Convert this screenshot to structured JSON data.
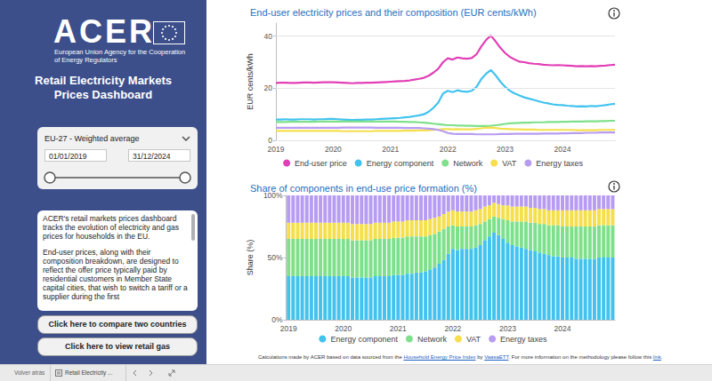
{
  "sidebar": {
    "logo": "ACER",
    "agency": [
      "European Union Agency for the Cooperation",
      "of Energy Regulators"
    ],
    "title": [
      "Retail Electricity Markets",
      "Prices Dashboard"
    ],
    "filter": {
      "selection": "EU-27 - Weighted average",
      "date_from": "01/01/2019",
      "date_to": "31/12/2024"
    },
    "description": [
      "ACER's retail markets prices dashboard tracks the evolution of electricity and gas prices for households in the EU.",
      "End-user prices, along with their composition breakdown, are designed to reflect the offer price typically paid by residential customers in Member State capital cities, that wish to switch a tariff or a supplier during the first"
    ],
    "buttons": [
      "Click here to compare two countries",
      "Click here to view retail gas"
    ]
  },
  "footer": [
    {
      "text": "Calculations made by ACER based on data sourced from the "
    },
    {
      "text": "Household Energy Price Index",
      "link": true
    },
    {
      "text": " by "
    },
    {
      "text": "VaasaETT",
      "link": true
    },
    {
      "text": ". For more information on the methodology please follow this "
    },
    {
      "text": "link",
      "link": true
    },
    {
      "text": "."
    }
  ],
  "taskbar": {
    "back": "Volver atrás",
    "tab": "Retail Electricity ..."
  },
  "chart_data": [
    {
      "type": "line",
      "title": "End-user electricity prices and their composition (EUR cents/kWh)",
      "y_label": "EUR cents/kWh",
      "categories": [
        "2019",
        null,
        null,
        null,
        null,
        null,
        null,
        null,
        null,
        null,
        null,
        null,
        "2020",
        null,
        null,
        null,
        null,
        null,
        null,
        null,
        null,
        null,
        null,
        null,
        "2021",
        null,
        null,
        null,
        null,
        null,
        null,
        null,
        null,
        null,
        null,
        null,
        "2022",
        null,
        null,
        null,
        null,
        null,
        null,
        null,
        null,
        null,
        null,
        null,
        "2023",
        null,
        null,
        null,
        null,
        null,
        null,
        null,
        null,
        null,
        null,
        null,
        "2024",
        null,
        null,
        null,
        null,
        null,
        null,
        null,
        null,
        null,
        null,
        null
      ],
      "series": [
        {
          "name": "End-user price",
          "color": "#e23fb6",
          "values": [
            22.0,
            22.1,
            22.1,
            22.0,
            22.0,
            22.1,
            22.2,
            22.2,
            22.1,
            22.2,
            22.3,
            22.3,
            22.3,
            22.2,
            22.1,
            22.0,
            21.9,
            22.0,
            22.0,
            22.1,
            22.1,
            22.2,
            22.3,
            22.4,
            22.5,
            22.6,
            22.7,
            22.8,
            23.0,
            23.3,
            23.6,
            24.0,
            24.8,
            26.0,
            27.5,
            30.0,
            31.5,
            31.0,
            31.8,
            31.5,
            31.3,
            31.6,
            33.0,
            36.0,
            38.5,
            40.2,
            38.0,
            35.5,
            33.5,
            32.0,
            31.0,
            30.2,
            30.0,
            29.6,
            29.4,
            29.3,
            29.0,
            28.9,
            28.8,
            28.9,
            28.8,
            28.7,
            28.6,
            28.4,
            28.5,
            28.4,
            28.5,
            28.4,
            28.6,
            28.7,
            28.9,
            29.0
          ]
        },
        {
          "name": "Energy component",
          "color": "#41c3ee",
          "values": [
            8.0,
            8.0,
            8.1,
            8.0,
            8.0,
            8.1,
            8.1,
            8.1,
            8.0,
            8.1,
            8.1,
            8.2,
            8.2,
            8.1,
            8.0,
            7.9,
            7.8,
            7.9,
            7.9,
            8.0,
            8.0,
            8.1,
            8.2,
            8.3,
            8.4,
            8.5,
            8.6,
            8.8,
            9.0,
            9.3,
            9.6,
            10.0,
            11.0,
            12.5,
            14.5,
            18.0,
            19.0,
            18.5,
            19.2,
            18.8,
            18.6,
            19.0,
            20.5,
            23.5,
            25.5,
            27.0,
            25.0,
            22.5,
            20.5,
            19.0,
            18.0,
            17.2,
            16.5,
            16.0,
            15.5,
            15.0,
            14.5,
            14.2,
            13.8,
            13.6,
            13.5,
            13.3,
            13.2,
            13.0,
            13.1,
            13.0,
            13.2,
            13.1,
            13.3,
            13.5,
            13.8,
            14.0
          ]
        },
        {
          "name": "Network",
          "color": "#7fe08c",
          "values": [
            7.0,
            7.0,
            7.0,
            7.1,
            7.1,
            7.1,
            7.1,
            7.1,
            7.1,
            7.2,
            7.2,
            7.2,
            7.2,
            7.2,
            7.2,
            7.2,
            7.2,
            7.2,
            7.2,
            7.2,
            7.2,
            7.2,
            7.2,
            7.2,
            7.2,
            7.2,
            7.1,
            7.1,
            7.0,
            7.0,
            6.9,
            6.8,
            6.6,
            6.4,
            6.2,
            6.0,
            5.8,
            5.8,
            5.7,
            5.7,
            5.6,
            5.6,
            5.5,
            5.5,
            5.5,
            5.6,
            5.8,
            6.0,
            6.3,
            6.5,
            6.6,
            6.7,
            6.8,
            6.8,
            6.9,
            6.9,
            6.9,
            7.0,
            7.0,
            7.0,
            7.1,
            7.1,
            7.2,
            7.2,
            7.2,
            7.3,
            7.3,
            7.3,
            7.4,
            7.4,
            7.5,
            7.5
          ]
        },
        {
          "name": "VAT",
          "color": "#f5df4d",
          "values": [
            3.6,
            3.6,
            3.6,
            3.6,
            3.6,
            3.6,
            3.6,
            3.6,
            3.6,
            3.6,
            3.6,
            3.6,
            3.6,
            3.6,
            3.5,
            3.5,
            3.5,
            3.5,
            3.5,
            3.5,
            3.5,
            3.6,
            3.6,
            3.6,
            3.6,
            3.6,
            3.6,
            3.7,
            3.7,
            3.7,
            3.8,
            3.8,
            3.9,
            4.0,
            4.1,
            4.3,
            4.3,
            4.2,
            4.3,
            4.2,
            4.2,
            4.2,
            4.4,
            4.6,
            4.8,
            4.9,
            4.7,
            4.5,
            4.4,
            4.3,
            4.2,
            4.2,
            4.1,
            4.1,
            4.1,
            4.0,
            4.0,
            4.0,
            4.0,
            4.0,
            4.0,
            4.0,
            4.0,
            3.9,
            3.9,
            3.9,
            3.9,
            3.9,
            4.0,
            4.0,
            4.0,
            4.0
          ]
        },
        {
          "name": "Energy taxes",
          "color": "#b79cf2",
          "values": [
            4.8,
            4.8,
            4.8,
            4.8,
            4.8,
            4.8,
            4.8,
            4.8,
            4.8,
            4.8,
            4.8,
            4.8,
            4.8,
            4.8,
            4.9,
            4.9,
            4.9,
            4.9,
            4.9,
            4.9,
            4.9,
            4.8,
            4.8,
            4.8,
            4.8,
            4.8,
            4.8,
            4.7,
            4.7,
            4.7,
            4.7,
            4.6,
            4.5,
            4.3,
            4.0,
            3.5,
            2.8,
            2.5,
            2.4,
            2.4,
            2.4,
            2.4,
            2.3,
            2.3,
            2.3,
            2.3,
            2.3,
            2.4,
            2.4,
            2.4,
            2.5,
            2.5,
            2.5,
            2.5,
            2.5,
            2.5,
            2.6,
            2.6,
            2.6,
            2.6,
            2.7,
            2.7,
            2.8,
            2.8,
            2.8,
            2.9,
            2.9,
            2.9,
            3.0,
            3.0,
            3.0,
            3.0
          ]
        }
      ],
      "ylim": [
        0,
        45
      ],
      "yticks": [
        0,
        20,
        40
      ],
      "grid": true,
      "legend": "bottom"
    },
    {
      "type": "bar",
      "stacked": true,
      "title": "Share of components in end-use price formation (%)",
      "y_label": "Share (%)",
      "categories": [
        "2019",
        null,
        null,
        null,
        null,
        null,
        null,
        null,
        null,
        null,
        null,
        null,
        "2020",
        null,
        null,
        null,
        null,
        null,
        null,
        null,
        null,
        null,
        null,
        null,
        "2021",
        null,
        null,
        null,
        null,
        null,
        null,
        null,
        null,
        null,
        null,
        null,
        "2022",
        null,
        null,
        null,
        null,
        null,
        null,
        null,
        null,
        null,
        null,
        null,
        "2023",
        null,
        null,
        null,
        null,
        null,
        null,
        null,
        null,
        null,
        null,
        null,
        "2024",
        null,
        null,
        null,
        null,
        null,
        null,
        null,
        null,
        null,
        null,
        null
      ],
      "series": [
        {
          "name": "Energy component",
          "color": "#41c3ee",
          "values": [
            35,
            35,
            35,
            35,
            35,
            35,
            35,
            35,
            35,
            35,
            35,
            35,
            35,
            35,
            34,
            34,
            34,
            34,
            34,
            35,
            35,
            35,
            35,
            36,
            36,
            36,
            37,
            37,
            38,
            38,
            39,
            40,
            42,
            45,
            48,
            53,
            57,
            56,
            57,
            57,
            57,
            58,
            60,
            64,
            67,
            70,
            68,
            65,
            62,
            60,
            59,
            58,
            57,
            56,
            55,
            54,
            53,
            52,
            51,
            51,
            50,
            50,
            50,
            49,
            49,
            49,
            49,
            49,
            50,
            50,
            50,
            50
          ]
        },
        {
          "name": "Network",
          "color": "#7fe08c",
          "values": [
            30,
            30,
            30,
            30,
            30,
            30,
            30,
            30,
            30,
            30,
            30,
            30,
            30,
            30,
            30,
            30,
            30,
            30,
            30,
            30,
            30,
            30,
            30,
            30,
            30,
            30,
            30,
            30,
            29,
            29,
            28,
            28,
            27,
            26,
            25,
            22,
            19,
            19,
            18,
            18,
            18,
            18,
            17,
            15,
            14,
            13,
            14,
            16,
            18,
            19,
            20,
            21,
            22,
            22,
            23,
            23,
            24,
            24,
            25,
            25,
            25,
            25,
            25,
            26,
            26,
            26,
            26,
            26,
            26,
            26,
            26,
            26
          ]
        },
        {
          "name": "VAT",
          "color": "#f5df4d",
          "values": [
            13,
            13,
            13,
            13,
            13,
            13,
            13,
            13,
            13,
            13,
            13,
            13,
            13,
            13,
            13,
            13,
            13,
            13,
            13,
            13,
            13,
            13,
            13,
            13,
            13,
            13,
            13,
            13,
            13,
            13,
            13,
            13,
            13,
            12,
            12,
            12,
            12,
            12,
            12,
            12,
            12,
            12,
            12,
            12,
            11,
            11,
            11,
            11,
            12,
            12,
            12,
            12,
            12,
            12,
            12,
            12,
            12,
            12,
            12,
            12,
            13,
            13,
            13,
            13,
            13,
            13,
            13,
            13,
            13,
            13,
            13,
            13
          ]
        },
        {
          "name": "Energy taxes",
          "color": "#b79cf2",
          "values": [
            22,
            22,
            22,
            22,
            22,
            22,
            22,
            22,
            22,
            22,
            22,
            22,
            22,
            22,
            23,
            23,
            23,
            23,
            23,
            22,
            22,
            22,
            22,
            21,
            21,
            21,
            20,
            20,
            20,
            20,
            20,
            19,
            18,
            17,
            15,
            13,
            12,
            13,
            13,
            13,
            13,
            12,
            11,
            9,
            8,
            6,
            7,
            8,
            8,
            9,
            9,
            9,
            9,
            10,
            10,
            11,
            11,
            12,
            12,
            12,
            12,
            12,
            12,
            12,
            12,
            12,
            12,
            12,
            11,
            11,
            11,
            11
          ]
        }
      ],
      "ylim": [
        0,
        100
      ],
      "yticks": [
        {
          "value": 0,
          "label": "0%"
        },
        {
          "value": 50,
          "label": "50%"
        },
        {
          "value": 100,
          "label": "100%"
        }
      ],
      "grid": false,
      "legend": "bottom"
    }
  ]
}
